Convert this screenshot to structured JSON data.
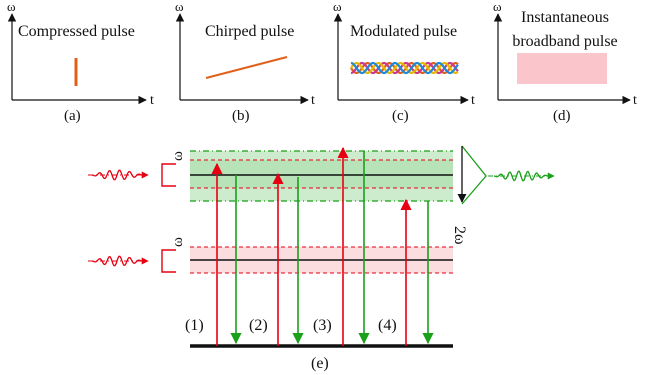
{
  "panels": [
    {
      "axis_y": "ω",
      "axis_x": "t",
      "title": "Compressed pulse",
      "caption": "(a)"
    },
    {
      "axis_y": "ω",
      "axis_x": "t",
      "title": "Chirped pulse",
      "caption": "(b)"
    },
    {
      "axis_y": "ω",
      "axis_x": "t",
      "title": "Modulated pulse",
      "caption": "(c)"
    },
    {
      "axis_y": "ω",
      "axis_x": "t",
      "title_line1": "Instantaneous",
      "title_line2": "broadband pulse",
      "caption": "(d)"
    }
  ],
  "energy": {
    "upper_omega": "ω",
    "lower_omega": "ω",
    "output_label": "2ω",
    "transitions": [
      "(1)",
      "(2)",
      "(3)",
      "(4)"
    ],
    "caption": "(e)"
  },
  "colors": {
    "red": "#e60012",
    "green": "#1aa01a",
    "orange": "#e0601a",
    "pink_fill": "#fbc6cb",
    "green_band": "#cdeccd",
    "pink_band": "#fbdde0"
  }
}
